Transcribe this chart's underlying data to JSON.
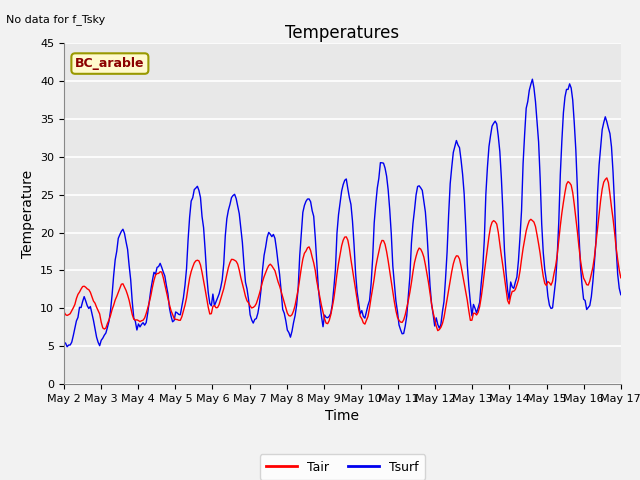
{
  "title": "Temperatures",
  "xlabel": "Time",
  "ylabel": "Temperature",
  "note": "No data for f_Tsky",
  "box_label": "BC_arable",
  "ylim": [
    0,
    45
  ],
  "tair_color": "#FF0000",
  "tsurf_color": "#0000EE",
  "legend_tair": "Tair",
  "legend_tsurf": "Tsurf",
  "background_color": "#E8E8E8",
  "title_fontsize": 12,
  "axis_fontsize": 10,
  "tick_fontsize": 8,
  "xtick_labels": [
    "May 2",
    "May 3",
    "May 4",
    "May 5",
    "May 6",
    "May 7",
    "May 8",
    "May 9",
    "May 10",
    "May 11",
    "May 12",
    "May 13",
    "May 14",
    "May 15",
    "May 16",
    "May 17"
  ],
  "ytick_labels": [
    0,
    5,
    10,
    15,
    20,
    25,
    30,
    35,
    40,
    45
  ]
}
